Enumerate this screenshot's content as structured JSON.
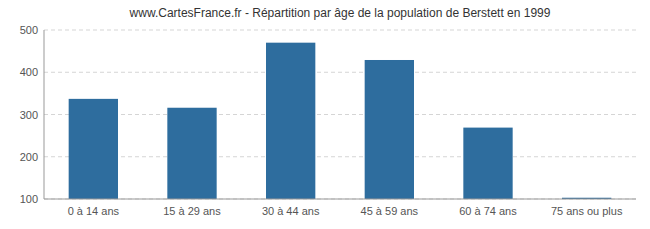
{
  "chart_data": {
    "type": "bar",
    "title": "www.CartesFrance.fr - Répartition par âge de la population de Berstett en 1999",
    "categories": [
      "0 à 14 ans",
      "15 à 29 ans",
      "30 à 44 ans",
      "45 à 59 ans",
      "60 à 74 ans",
      "75 ans ou plus"
    ],
    "values": [
      337,
      316,
      470,
      429,
      269,
      103
    ],
    "color": "#2e6d9e",
    "ylim": [
      100,
      500
    ],
    "yticks": [
      100,
      200,
      300,
      400,
      500
    ],
    "grid": true
  }
}
